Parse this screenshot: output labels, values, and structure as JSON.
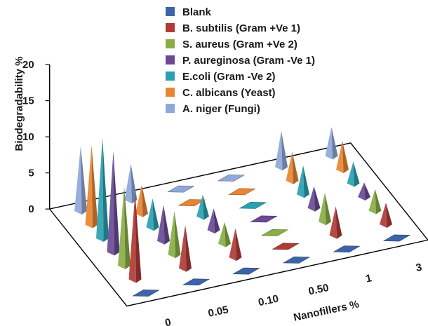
{
  "chart_data": {
    "type": "bar",
    "subtype": "3d-cone",
    "title": "",
    "xlabel": "Nanofillers %",
    "ylabel": "Biodegradability %",
    "categories": [
      "0",
      "0.05",
      "0.10",
      "0.50",
      "1",
      "3"
    ],
    "ylim": [
      0,
      20
    ],
    "yticks": [
      "0",
      "5",
      "10",
      "15",
      "20"
    ],
    "grid": false,
    "legend_position": "top-right",
    "series": [
      {
        "name": "Blank",
        "color": "#3e64a8",
        "values": [
          0,
          0,
          0,
          0,
          0,
          0
        ]
      },
      {
        "name": "B. subtilis (Gram +Ve 1)",
        "color": "#b03a36",
        "values": [
          12,
          6,
          4,
          0,
          4,
          3
        ]
      },
      {
        "name": "S. aureus (Gram +Ve 2)",
        "color": "#8aad45",
        "values": [
          11,
          6,
          3,
          0,
          4,
          3
        ]
      },
      {
        "name": "P. aureginosa (Gram -Ve 1)",
        "color": "#6a4a96",
        "values": [
          14,
          5,
          3,
          0,
          3,
          2
        ]
      },
      {
        "name": "E.coli (Gram -Ve 2)",
        "color": "#2aa0b0",
        "values": [
          14,
          4,
          3,
          0,
          4,
          3
        ]
      },
      {
        "name": "C. albicans (Yeast)",
        "color": "#e88532",
        "values": [
          11,
          4,
          0,
          0,
          4,
          4
        ]
      },
      {
        "name": "A. niger (Fungi)",
        "color": "#8fa8d8",
        "values": [
          9,
          5,
          0,
          0,
          5,
          4
        ]
      }
    ]
  }
}
